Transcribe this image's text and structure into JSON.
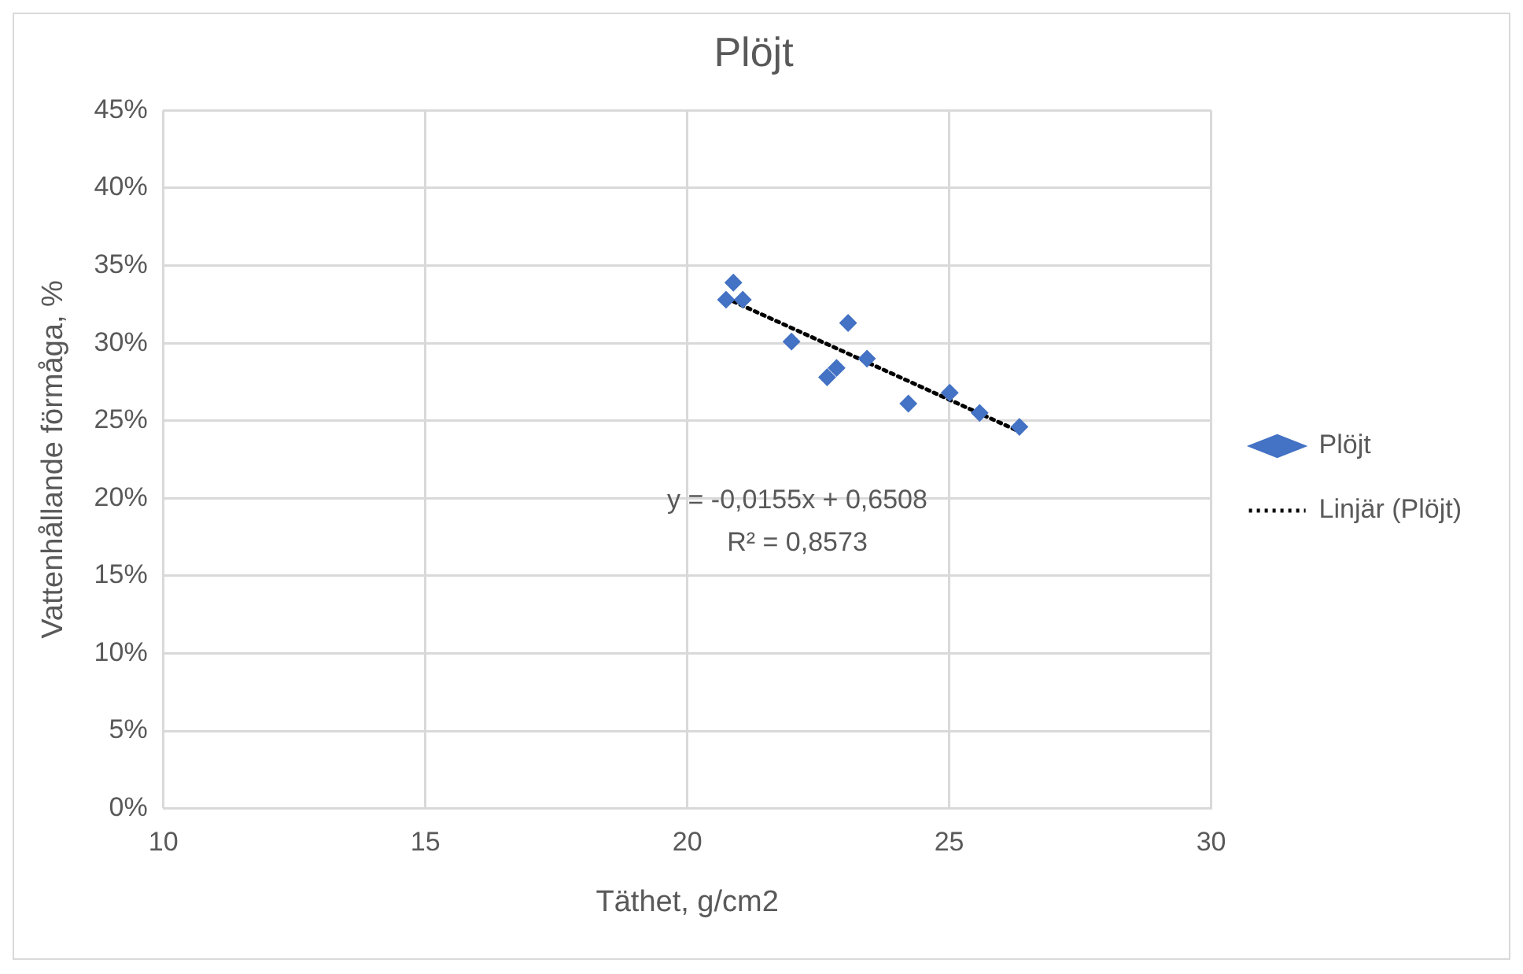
{
  "chart_data": {
    "type": "scatter",
    "title": "Plöjt",
    "xlabel": "Täthet, g/cm2",
    "ylabel": "Vattenhållande förmåga, %",
    "xlim": [
      10,
      30
    ],
    "xticks": [
      10,
      15,
      20,
      25,
      30
    ],
    "ylim": [
      0,
      45
    ],
    "yticks": [
      {
        "value": 0,
        "label": "0%"
      },
      {
        "value": 5,
        "label": "5%"
      },
      {
        "value": 10,
        "label": "10%"
      },
      {
        "value": 15,
        "label": "15%"
      },
      {
        "value": 20,
        "label": "20%"
      },
      {
        "value": 25,
        "label": "25%"
      },
      {
        "value": 30,
        "label": "30%"
      },
      {
        "value": 35,
        "label": "35%"
      },
      {
        "value": 40,
        "label": "40%"
      },
      {
        "value": 45,
        "label": "45%"
      }
    ],
    "grid": true,
    "legend": "right",
    "marker": "diamond",
    "series": [
      {
        "name": "Plöjt",
        "type": "scatter",
        "color": "#4472c4",
        "x": [
          20.74,
          20.88,
          21.06,
          21.99,
          23.07,
          23.43,
          22.67,
          22.85,
          24.22,
          25.01,
          25.58,
          26.34
        ],
        "values": [
          32.8,
          33.9,
          32.8,
          30.1,
          31.3,
          29.0,
          27.8,
          28.4,
          26.1,
          26.8,
          25.5,
          24.6
        ]
      },
      {
        "name": "Linjär (Plöjt)",
        "type": "line",
        "color": "#000000",
        "line_style": "dotted",
        "marker": "none",
        "x": [
          20.74,
          26.34
        ],
        "values": [
          32.9,
          24.3
        ]
      }
    ],
    "annotations": [
      "y = -0,0155x + 0,6508",
      "R² = 0,8573"
    ]
  }
}
